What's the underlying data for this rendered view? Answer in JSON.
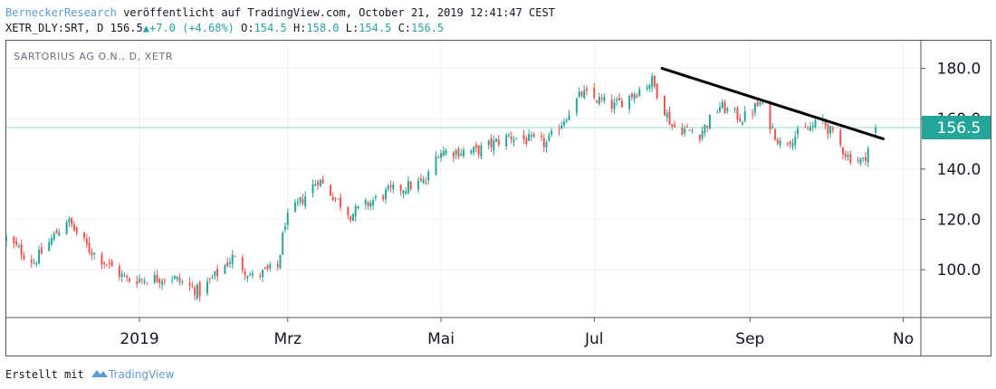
{
  "header": {
    "author": "BerneckerResearch",
    "published": "veröffentlicht auf TradingView.com, October 21, 2019 12:41:47 CEST",
    "symbol": "XETR_DLY:SRT, D",
    "price": "156.5",
    "change": "+7.0 (+4.68%)",
    "o_label": "O:",
    "o_value": "154.5",
    "h_label": "H:",
    "h_value": "158.0",
    "l_label": "L:",
    "l_value": "154.5",
    "c_label": "C:",
    "c_value": "156.5"
  },
  "footer": {
    "prefix": "Erstellt mit",
    "brand": "TradingView"
  },
  "colors": {
    "up": "#26a69a",
    "down": "#ef5350",
    "last_price_bg": "#26a69a",
    "trendline": "#000000"
  },
  "chart_data": {
    "type": "candlestick",
    "title": "SARTORIUS AG O.N., D, XETR",
    "last_price_label": "156.5",
    "last_price": 156.5,
    "y_ticks": [
      100.0,
      120.0,
      140.0,
      160.0,
      180.0
    ],
    "y_tick_labels": [
      "100.0",
      "120.0",
      "140.0",
      "160.0",
      "180.0"
    ],
    "ylim": [
      81,
      191
    ],
    "xlim": [
      "2018-11-09",
      "2019-11-08"
    ],
    "x_ticks": [
      {
        "date": "2019-01-01",
        "label": "2019"
      },
      {
        "date": "2019-03-01",
        "label": "Mrz"
      },
      {
        "date": "2019-05-01",
        "label": "Mai"
      },
      {
        "date": "2019-07-01",
        "label": "Jul"
      },
      {
        "date": "2019-09-01",
        "label": "Sep"
      },
      {
        "date": "2019-11-01",
        "label": "No"
      }
    ],
    "grid": true,
    "close_path": [
      [
        "2018-11-09",
        112
      ],
      [
        "2018-11-20",
        103
      ],
      [
        "2018-12-03",
        120
      ],
      [
        "2018-12-12",
        108
      ],
      [
        "2018-12-27",
        96
      ],
      [
        "2019-01-14",
        97
      ],
      [
        "2019-01-25",
        91
      ],
      [
        "2019-02-07",
        105
      ],
      [
        "2019-02-15",
        97
      ],
      [
        "2019-02-25",
        101
      ],
      [
        "2019-02-28",
        119
      ],
      [
        "2019-03-13",
        136
      ],
      [
        "2019-03-26",
        122
      ],
      [
        "2019-04-10",
        131
      ],
      [
        "2019-04-25",
        135
      ],
      [
        "2019-04-30",
        147
      ],
      [
        "2019-05-15",
        147
      ],
      [
        "2019-05-28",
        153
      ],
      [
        "2019-06-12",
        150
      ],
      [
        "2019-06-26",
        170
      ],
      [
        "2019-07-09",
        165
      ],
      [
        "2019-07-24",
        175
      ],
      [
        "2019-08-01",
        157
      ],
      [
        "2019-08-12",
        154
      ],
      [
        "2019-08-20",
        165
      ],
      [
        "2019-08-29",
        160
      ],
      [
        "2019-09-05",
        166
      ],
      [
        "2019-09-13",
        150
      ],
      [
        "2019-09-30",
        159
      ],
      [
        "2019-10-10",
        145
      ],
      [
        "2019-10-16",
        143
      ],
      [
        "2019-10-21",
        156.5
      ]
    ],
    "trendline": {
      "from": [
        "2019-07-28",
        180
      ],
      "to": [
        "2019-10-24",
        152
      ]
    }
  }
}
